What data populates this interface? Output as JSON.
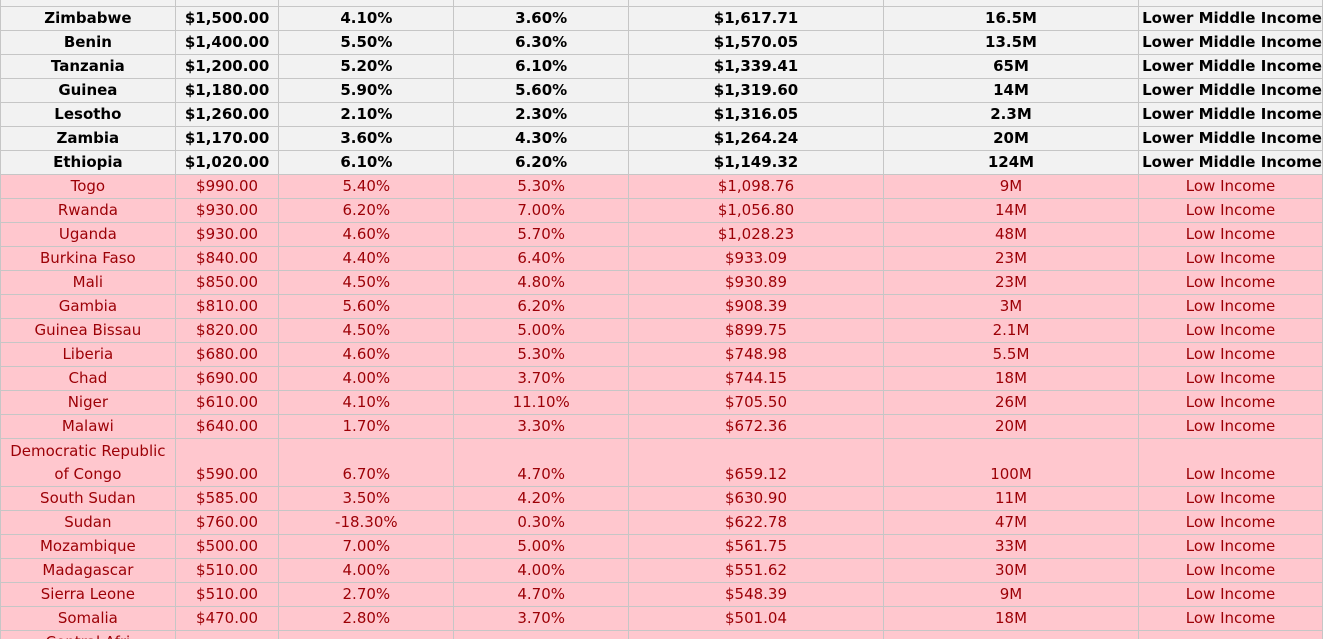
{
  "sheet": {
    "rows": [
      {
        "group": "lmi",
        "country": "Zimbabwe",
        "gdp": "$1,500.00",
        "rate1": "4.10%",
        "rate2": "3.60%",
        "projected": "$1,617.71",
        "population": "16.5M",
        "income": "Lower Middle Income"
      },
      {
        "group": "lmi",
        "country": "Benin",
        "gdp": "$1,400.00",
        "rate1": "5.50%",
        "rate2": "6.30%",
        "projected": "$1,570.05",
        "population": "13.5M",
        "income": "Lower Middle Income"
      },
      {
        "group": "lmi",
        "country": "Tanzania",
        "gdp": "$1,200.00",
        "rate1": "5.20%",
        "rate2": "6.10%",
        "projected": "$1,339.41",
        "population": "65M",
        "income": "Lower Middle Income"
      },
      {
        "group": "lmi",
        "country": "Guinea",
        "gdp": "$1,180.00",
        "rate1": "5.90%",
        "rate2": "5.60%",
        "projected": "$1,319.60",
        "population": "14M",
        "income": "Lower Middle Income"
      },
      {
        "group": "lmi",
        "country": "Lesotho",
        "gdp": "$1,260.00",
        "rate1": "2.10%",
        "rate2": "2.30%",
        "projected": "$1,316.05",
        "population": "2.3M",
        "income": "Lower Middle Income"
      },
      {
        "group": "lmi",
        "country": "Zambia",
        "gdp": "$1,170.00",
        "rate1": "3.60%",
        "rate2": "4.30%",
        "projected": "$1,264.24",
        "population": "20M",
        "income": "Lower Middle Income"
      },
      {
        "group": "lmi",
        "country": "Ethiopia",
        "gdp": "$1,020.00",
        "rate1": "6.10%",
        "rate2": "6.20%",
        "projected": "$1,149.32",
        "population": "124M",
        "income": "Lower Middle Income"
      },
      {
        "group": "low",
        "country": "Togo",
        "gdp": "$990.00",
        "rate1": "5.40%",
        "rate2": "5.30%",
        "projected": "$1,098.76",
        "population": "9M",
        "income": "Low Income"
      },
      {
        "group": "low",
        "country": "Rwanda",
        "gdp": "$930.00",
        "rate1": "6.20%",
        "rate2": "7.00%",
        "projected": "$1,056.80",
        "population": "14M",
        "income": "Low Income"
      },
      {
        "group": "low",
        "country": "Uganda",
        "gdp": "$930.00",
        "rate1": "4.60%",
        "rate2": "5.70%",
        "projected": "$1,028.23",
        "population": "48M",
        "income": "Low Income"
      },
      {
        "group": "low",
        "country": "Burkina Faso",
        "gdp": "$840.00",
        "rate1": "4.40%",
        "rate2": "6.40%",
        "projected": "$933.09",
        "population": "23M",
        "income": "Low Income"
      },
      {
        "group": "low",
        "country": "Mali",
        "gdp": "$850.00",
        "rate1": "4.50%",
        "rate2": "4.80%",
        "projected": "$930.89",
        "population": "23M",
        "income": "Low Income"
      },
      {
        "group": "low",
        "country": "Gambia",
        "gdp": "$810.00",
        "rate1": "5.60%",
        "rate2": "6.20%",
        "projected": "$908.39",
        "population": "3M",
        "income": "Low Income"
      },
      {
        "group": "low",
        "country": "Guinea Bissau",
        "gdp": "$820.00",
        "rate1": "4.50%",
        "rate2": "5.00%",
        "projected": "$899.75",
        "population": "2.1M",
        "income": "Low Income"
      },
      {
        "group": "low",
        "country": "Liberia",
        "gdp": "$680.00",
        "rate1": "4.60%",
        "rate2": "5.30%",
        "projected": "$748.98",
        "population": "5.5M",
        "income": "Low Income"
      },
      {
        "group": "low",
        "country": "Chad",
        "gdp": "$690.00",
        "rate1": "4.00%",
        "rate2": "3.70%",
        "projected": "$744.15",
        "population": "18M",
        "income": "Low Income"
      },
      {
        "group": "low",
        "country": "Niger",
        "gdp": "$610.00",
        "rate1": "4.10%",
        "rate2": "11.10%",
        "projected": "$705.50",
        "population": "26M",
        "income": "Low Income"
      },
      {
        "group": "low",
        "country": "Malawi",
        "gdp": "$640.00",
        "rate1": "1.70%",
        "rate2": "3.30%",
        "projected": "$672.36",
        "population": "20M",
        "income": "Low Income"
      },
      {
        "group": "low",
        "country": "Democratic Republic of Congo",
        "gdp": "$590.00",
        "rate1": "6.70%",
        "rate2": "4.70%",
        "projected": "$659.12",
        "population": "100M",
        "income": "Low Income",
        "tall": true
      },
      {
        "group": "low",
        "country": "South Sudan",
        "gdp": "$585.00",
        "rate1": "3.50%",
        "rate2": "4.20%",
        "projected": "$630.90",
        "population": "11M",
        "income": "Low Income"
      },
      {
        "group": "low",
        "country": "Sudan",
        "gdp": "$760.00",
        "rate1": "-18.30%",
        "rate2": "0.30%",
        "projected": "$622.78",
        "population": "47M",
        "income": "Low Income"
      },
      {
        "group": "low",
        "country": "Mozambique",
        "gdp": "$500.00",
        "rate1": "7.00%",
        "rate2": "5.00%",
        "projected": "$561.75",
        "population": "33M",
        "income": "Low Income"
      },
      {
        "group": "low",
        "country": "Madagascar",
        "gdp": "$510.00",
        "rate1": "4.00%",
        "rate2": "4.00%",
        "projected": "$551.62",
        "population": "30M",
        "income": "Low Income"
      },
      {
        "group": "low",
        "country": "Sierra Leone",
        "gdp": "$510.00",
        "rate1": "2.70%",
        "rate2": "4.70%",
        "projected": "$548.39",
        "population": "9M",
        "income": "Low Income"
      },
      {
        "group": "low",
        "country": "Somalia",
        "gdp": "$470.00",
        "rate1": "2.80%",
        "rate2": "3.70%",
        "projected": "$501.04",
        "population": "18M",
        "income": "Low Income"
      }
    ],
    "partial_last_row": {
      "country": "Central Afri"
    }
  }
}
